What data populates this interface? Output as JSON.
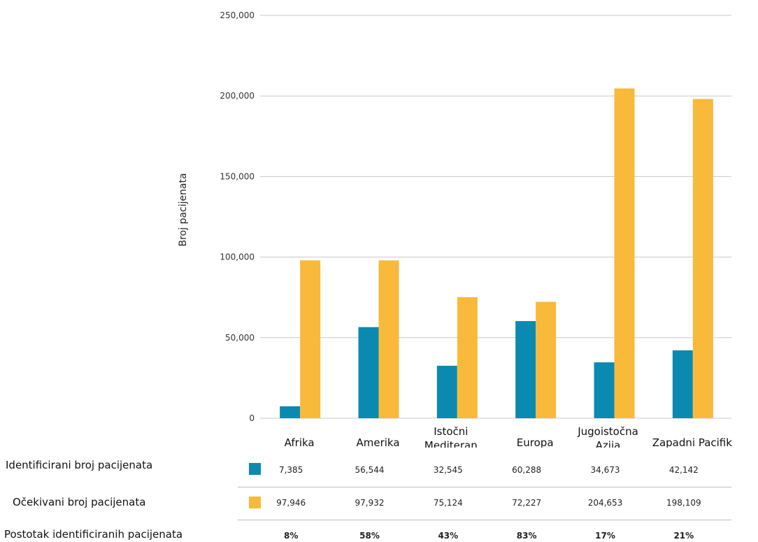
{
  "chart_data": {
    "type": "bar",
    "ylabel": "Broj pacijenata",
    "ylim": [
      0,
      250000
    ],
    "yticks": [
      0,
      50000,
      100000,
      150000,
      200000,
      250000
    ],
    "ytick_labels": [
      "0",
      "50,000",
      "100,000",
      "150,000",
      "200,000",
      "250,000"
    ],
    "grid": true,
    "categories": [
      [
        "Afrika"
      ],
      [
        "Amerika"
      ],
      [
        "Istočni",
        "Mediteran"
      ],
      [
        "Europa"
      ],
      [
        "Jugoistočna",
        "Azija"
      ],
      [
        "Zapadni Pacifik"
      ]
    ],
    "series": [
      {
        "name": "Identificirani broj pacijenata",
        "color": "#0a8ab0",
        "values": [
          7385,
          56544,
          32545,
          60288,
          34673,
          42142
        ],
        "labels": [
          "7,385",
          "56,544",
          "32,545",
          "60,288",
          "34,673",
          "42,142"
        ]
      },
      {
        "name": "Očekivani broj pacijenata",
        "color": "#f9b93a",
        "values": [
          97946,
          97932,
          75124,
          72227,
          204653,
          198109
        ],
        "labels": [
          "97,946",
          "97,932",
          "75,124",
          "72,227",
          "204,653",
          "198,109"
        ]
      }
    ],
    "percent_row": {
      "name": "Postotak identificiranih pacijenata",
      "values": [
        "8%",
        "58%",
        "43%",
        "83%",
        "17%",
        "21%"
      ]
    }
  }
}
